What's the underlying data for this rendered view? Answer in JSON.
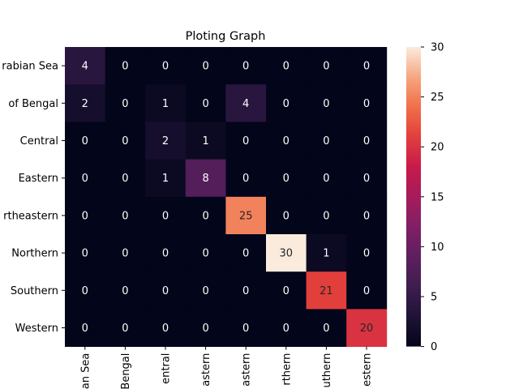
{
  "chart_data": {
    "type": "heatmap",
    "title": "Ploting Graph",
    "xlabel": "",
    "ylabel": "",
    "row_labels": [
      "Arabian Sea",
      "Bay of Bengal",
      "Central",
      "Eastern",
      "Northeastern",
      "Northern",
      "Southern",
      "Western"
    ],
    "row_tick_labels_visible": [
      "rabian Sea",
      "of Bengal",
      "Central",
      "Eastern",
      "rtheastern",
      "Northern",
      "Southern",
      "Western"
    ],
    "col_tick_labels_visible": [
      "an Sea",
      "Bengal",
      "entral",
      "astern",
      "astern",
      "rthern",
      "uthern",
      "estern"
    ],
    "values": [
      [
        4,
        0,
        0,
        0,
        0,
        0,
        0,
        0
      ],
      [
        2,
        0,
        1,
        0,
        4,
        0,
        0,
        0
      ],
      [
        0,
        0,
        2,
        1,
        0,
        0,
        0,
        0
      ],
      [
        0,
        0,
        1,
        8,
        0,
        0,
        0,
        0
      ],
      [
        0,
        0,
        0,
        0,
        25,
        0,
        0,
        0
      ],
      [
        0,
        0,
        0,
        0,
        0,
        30,
        1,
        0
      ],
      [
        0,
        0,
        0,
        0,
        0,
        0,
        21,
        0
      ],
      [
        0,
        0,
        0,
        0,
        0,
        0,
        0,
        20
      ]
    ],
    "colorbar": {
      "range": [
        0,
        30
      ],
      "ticks": [
        0,
        5,
        10,
        15,
        20,
        25,
        30
      ]
    },
    "colormap": "rocket",
    "annotations": true,
    "grid": false
  }
}
